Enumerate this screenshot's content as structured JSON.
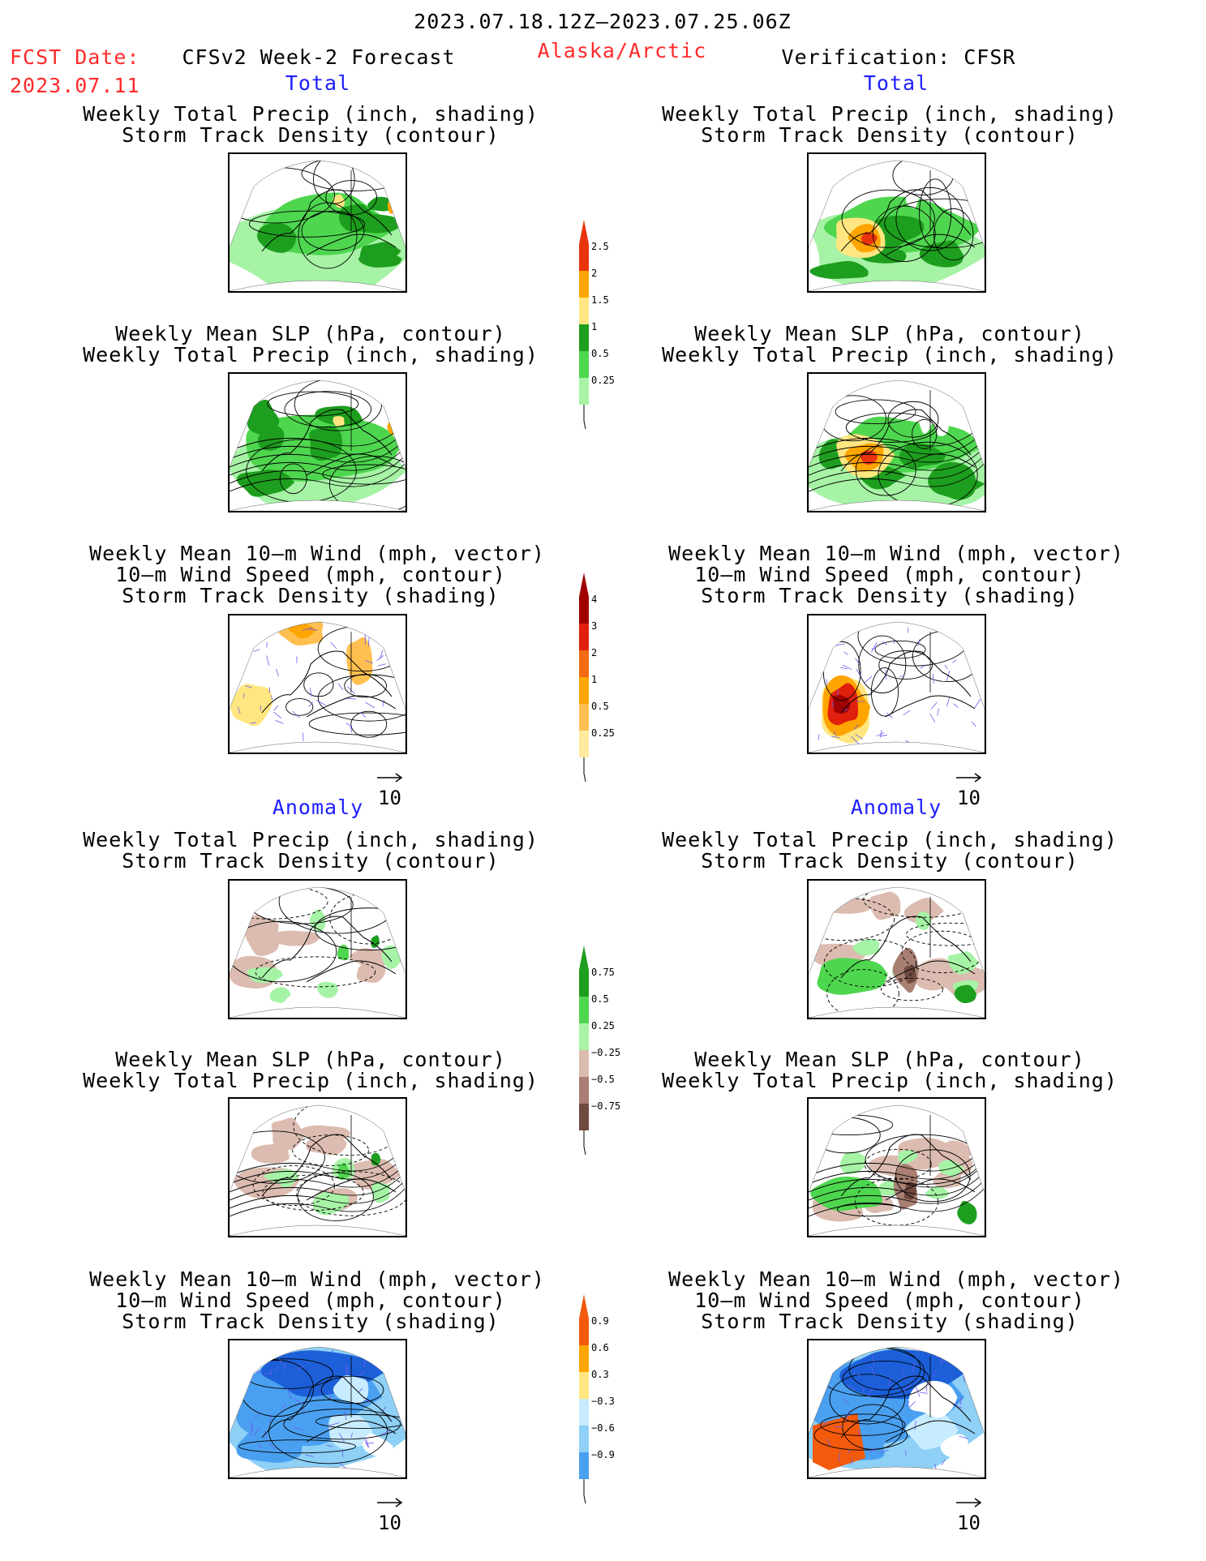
{
  "header": {
    "period": "2023.07.18.12Z—2023.07.25.06Z",
    "fcst_label": "FCST Date:",
    "fcst_date": "2023.07.11",
    "model_title": "CFSv2 Week-2 Forecast",
    "region": "Alaska/Arctic",
    "verification": "Verification: CFSR"
  },
  "sections": {
    "total": "Total",
    "anomaly": "Anomaly"
  },
  "titles": {
    "precip_storm": [
      "Weekly Total Precip (inch, shading)",
      "Storm Track Density (contour)"
    ],
    "slp_precip": [
      "Weekly Mean SLP (hPa, contour)",
      "Weekly Total Precip (inch, shading)"
    ],
    "wind_storm": [
      "Weekly Mean 10—m Wind (mph, vector)",
      "10—m Wind Speed (mph, contour)",
      "Storm Track Density (shading)"
    ]
  },
  "vector_ref": "10",
  "colors": {
    "green_light": "#a6f3a6",
    "green_mid": "#4fd64f",
    "green_dark": "#1e9e1e",
    "yellow": "#ffe680",
    "orange": "#ffa500",
    "red": "#e8340c",
    "darkred": "#a00000",
    "brown_light": "#dcbcb0",
    "brown_mid": "#a87f72",
    "brown_dark": "#6e4a40",
    "blue_light": "#c8ecff",
    "blue_mid": "#8ed0f6",
    "blue": "#4aa0f0",
    "blue_dark": "#1c5fd8",
    "vector": "#6a5cf0"
  },
  "chart_data": [
    {
      "type": "heatmap",
      "name": "Weekly Total Precip colorbar",
      "levels": [
        "2.5",
        "2",
        "1.5",
        "1",
        "0.5",
        "0.25"
      ],
      "colors": [
        "#e8340c",
        "#ffa500",
        "#ffe680",
        "#1e9e1e",
        "#4fd64f",
        "#a6f3a6"
      ]
    },
    {
      "type": "heatmap",
      "name": "Storm Track Density colorbar",
      "levels": [
        "4",
        "3",
        "2",
        "1",
        "0.5",
        "0.25"
      ],
      "colors": [
        "#a00000",
        "#e0200c",
        "#f36a10",
        "#ffa500",
        "#ffc050",
        "#ffeaa0"
      ]
    },
    {
      "type": "heatmap",
      "name": "Precip anomaly colorbar",
      "levels": [
        "0.75",
        "0.5",
        "0.25",
        "−0.25",
        "−0.5",
        "−0.75"
      ],
      "colors": [
        "#1e9e1e",
        "#4fd64f",
        "#a6f3a6",
        "#dcbcb0",
        "#a87f72",
        "#6e4a40"
      ]
    },
    {
      "type": "heatmap",
      "name": "Storm track anomaly colorbar",
      "levels": [
        "0.9",
        "0.6",
        "0.3",
        "−0.3",
        "−0.6",
        "−0.9"
      ],
      "colors": [
        "#f35a0c",
        "#ffa500",
        "#ffe680",
        "#c8ecff",
        "#8ed0f6",
        "#4aa0f0"
      ]
    }
  ]
}
